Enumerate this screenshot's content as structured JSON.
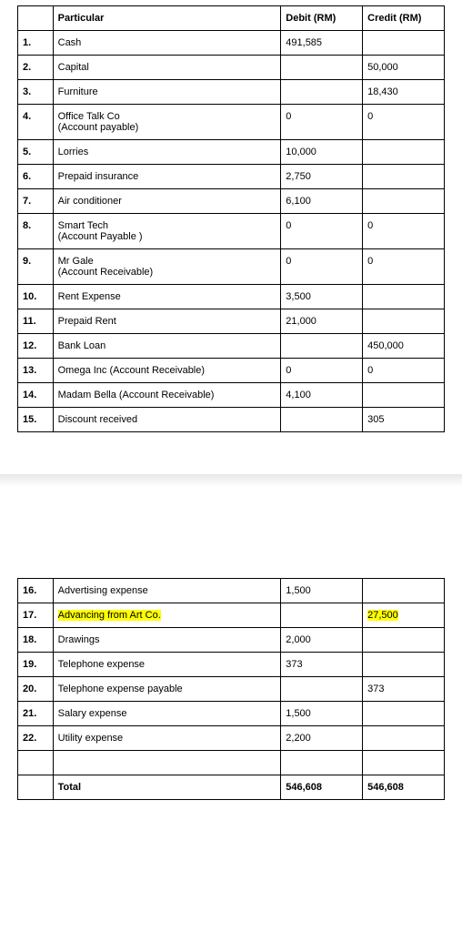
{
  "columns": {
    "particular": "Particular",
    "debit": "Debit (RM)",
    "credit": "Credit (RM)"
  },
  "rows1": [
    {
      "n": "1.",
      "p": "Cash",
      "d": "491,585",
      "c": ""
    },
    {
      "n": "2.",
      "p": "Capital",
      "d": "",
      "c": "50,000"
    },
    {
      "n": "3.",
      "p": "Furniture",
      "d": "",
      "c": "18,430"
    },
    {
      "n": "4.",
      "p": "Office Talk Co\n(Account payable)",
      "d": "0",
      "c": "0"
    },
    {
      "n": "5.",
      "p": "Lorries",
      "d": "10,000",
      "c": ""
    },
    {
      "n": "6.",
      "p": "Prepaid insurance",
      "d": "2,750",
      "c": ""
    },
    {
      "n": "7.",
      "p": "Air conditioner",
      "d": "6,100",
      "c": ""
    },
    {
      "n": "8.",
      "p": "Smart Tech\n(Account Payable )",
      "d": "0",
      "c": "0"
    },
    {
      "n": "9.",
      "p": "Mr Gale\n(Account Receivable)",
      "d": "0",
      "c": "0"
    },
    {
      "n": "10.",
      "p": "Rent Expense",
      "d": "3,500",
      "c": ""
    },
    {
      "n": "11.",
      "p": "Prepaid Rent",
      "d": "21,000",
      "c": ""
    },
    {
      "n": "12.",
      "p": "Bank Loan",
      "d": "",
      "c": "450,000"
    },
    {
      "n": "13.",
      "p": "Omega Inc (Account Receivable)",
      "d": "0",
      "c": "0"
    },
    {
      "n": "14.",
      "p": "Madam Bella (Account Receivable)",
      "d": "4,100",
      "c": ""
    },
    {
      "n": "15.",
      "p": "Discount received",
      "d": "",
      "c": "305"
    }
  ],
  "rows2": [
    {
      "n": "16.",
      "p": "Advertising expense",
      "d": "1,500",
      "c": "",
      "hl_p": false,
      "hl_c": false
    },
    {
      "n": "17.",
      "p": "Advancing from Art Co.",
      "d": "",
      "c": "27,500",
      "hl_p": true,
      "hl_c": true
    },
    {
      "n": "18.",
      "p": "Drawings",
      "d": "2,000",
      "c": "",
      "hl_p": false,
      "hl_c": false
    },
    {
      "n": "19.",
      "p": "Telephone expense",
      "d": "373",
      "c": "",
      "hl_p": false,
      "hl_c": false
    },
    {
      "n": "20.",
      "p": "Telephone expense payable",
      "d": "",
      "c": "373",
      "hl_p": false,
      "hl_c": false
    },
    {
      "n": "21.",
      "p": "Salary expense",
      "d": "1,500",
      "c": "",
      "hl_p": false,
      "hl_c": false
    },
    {
      "n": "22.",
      "p": "Utility expense",
      "d": "2,200",
      "c": "",
      "hl_p": false,
      "hl_c": false
    }
  ],
  "total": {
    "label": "Total",
    "debit": "546,608",
    "credit": "546,608"
  },
  "highlight_color": "#ffff00"
}
